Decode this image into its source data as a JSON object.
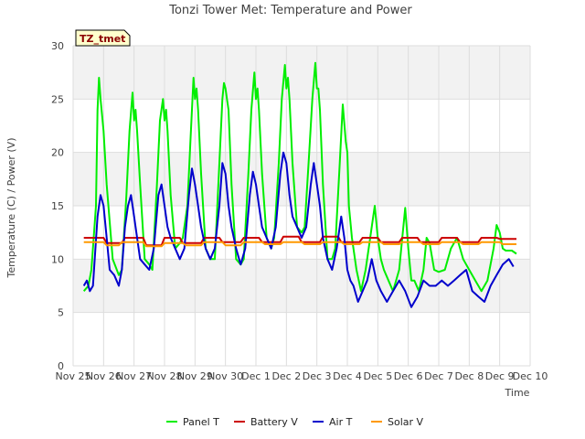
{
  "chart_data": {
    "type": "line",
    "title": "Tonzi Tower Met: Temperature and Power",
    "xlabel": "Time",
    "ylabel": "Temperature (C) / Power (V)",
    "ylim": [
      0,
      30
    ],
    "yticks": [
      0,
      5,
      10,
      15,
      20,
      25,
      30
    ],
    "xlim": [
      0,
      15
    ],
    "xticks": [
      "Nov 25",
      "Nov 26",
      "Nov 27",
      "Nov 28",
      "Nov 29",
      "Nov 30",
      "Dec 1",
      "Dec 2",
      "Dec 3",
      "Dec 4",
      "Dec 5",
      "Dec 6",
      "Dec 7",
      "Dec 8",
      "Dec 9",
      "Dec 10"
    ],
    "site_tag": "TZ_tmet",
    "grid": true,
    "legend_position": "bottom",
    "series": [
      {
        "name": "Panel T",
        "color": "#00ee00",
        "x": [
          0.35,
          0.5,
          0.6,
          0.75,
          0.8,
          0.85,
          0.9,
          1.0,
          1.1,
          1.3,
          1.5,
          1.6,
          1.75,
          1.85,
          1.95,
          2.0,
          2.05,
          2.1,
          2.2,
          2.35,
          2.5,
          2.6,
          2.75,
          2.85,
          2.95,
          3.0,
          3.05,
          3.1,
          3.2,
          3.35,
          3.5,
          3.6,
          3.75,
          3.85,
          3.95,
          4.0,
          4.05,
          4.1,
          4.2,
          4.35,
          4.5,
          4.65,
          4.8,
          4.9,
          4.95,
          5.0,
          5.05,
          5.1,
          5.2,
          5.35,
          5.5,
          5.6,
          5.75,
          5.85,
          5.95,
          6.0,
          6.05,
          6.1,
          6.2,
          6.35,
          6.5,
          6.6,
          6.75,
          6.85,
          6.95,
          7.0,
          7.05,
          7.1,
          7.2,
          7.35,
          7.5,
          7.6,
          7.75,
          7.85,
          7.95,
          8.0,
          8.05,
          8.1,
          8.2,
          8.35,
          8.5,
          8.6,
          8.75,
          8.85,
          8.95,
          9.0,
          9.05,
          9.15,
          9.3,
          9.45,
          9.6,
          9.75,
          9.9,
          10.0,
          10.1,
          10.2,
          10.35,
          10.5,
          10.7,
          10.9,
          11.0,
          11.1,
          11.2,
          11.35,
          11.5,
          11.6,
          11.7,
          11.85,
          12.0,
          12.2,
          12.4,
          12.6,
          12.8,
          13.0,
          13.2,
          13.4,
          13.6,
          13.8,
          13.9,
          14.0,
          14.1,
          14.2,
          14.4,
          14.55
        ],
        "values": [
          7.0,
          7.5,
          9.0,
          15.0,
          24.0,
          27.0,
          25.0,
          22.0,
          17.0,
          10.0,
          8.5,
          9.0,
          16.0,
          22.0,
          25.6,
          23.0,
          24.0,
          22.0,
          17.0,
          10.0,
          9.5,
          9.0,
          17.0,
          23.0,
          25.0,
          23.0,
          24.0,
          22.0,
          16.0,
          11.0,
          11.5,
          12.0,
          15.0,
          21.0,
          27.0,
          25.0,
          26.0,
          24.0,
          18.0,
          11.0,
          10.0,
          10.0,
          19.0,
          25.0,
          26.5,
          26.0,
          25.0,
          24.0,
          17.0,
          10.0,
          9.5,
          10.0,
          18.0,
          24.0,
          27.5,
          25.0,
          26.0,
          24.0,
          18.0,
          12.0,
          11.0,
          12.0,
          19.0,
          25.0,
          28.2,
          26.0,
          27.0,
          25.0,
          19.0,
          13.0,
          12.5,
          13.0,
          20.0,
          25.0,
          28.4,
          26.0,
          26.0,
          24.0,
          17.0,
          10.0,
          10.0,
          11.0,
          19.0,
          24.5,
          21.0,
          20.0,
          15.0,
          12.0,
          9.0,
          7.0,
          9.0,
          12.0,
          15.0,
          12.0,
          10.0,
          9.0,
          8.0,
          7.0,
          9.0,
          14.8,
          11.0,
          8.0,
          8.0,
          7.0,
          9.0,
          12.0,
          11.5,
          9.0,
          8.8,
          9.0,
          11.0,
          12.0,
          10.0,
          9.0,
          8.0,
          7.0,
          8.0,
          11.0,
          13.2,
          12.5,
          11.0,
          10.8,
          10.8,
          10.5
        ]
      },
      {
        "name": "Battery V",
        "color": "#cc0000",
        "x": [
          0.35,
          1.0,
          1.1,
          1.6,
          1.7,
          2.3,
          2.4,
          2.9,
          3.0,
          3.5,
          3.6,
          4.2,
          4.3,
          4.8,
          4.9,
          5.5,
          5.6,
          6.1,
          6.2,
          6.8,
          6.9,
          7.4,
          7.5,
          8.1,
          8.2,
          8.7,
          8.8,
          9.4,
          9.5,
          10.0,
          10.1,
          10.7,
          10.8,
          11.3,
          11.4,
          12.0,
          12.1,
          12.6,
          12.7,
          13.3,
          13.4,
          13.9,
          14.0,
          14.55
        ],
        "values": [
          12.0,
          12.0,
          11.5,
          11.5,
          12.0,
          12.0,
          11.3,
          11.3,
          12.0,
          12.0,
          11.5,
          11.5,
          12.0,
          12.0,
          11.6,
          11.6,
          12.0,
          12.0,
          11.6,
          11.6,
          12.1,
          12.1,
          11.6,
          11.6,
          12.1,
          12.1,
          11.6,
          11.6,
          12.0,
          12.0,
          11.6,
          11.6,
          12.0,
          12.0,
          11.6,
          11.6,
          12.0,
          12.0,
          11.6,
          11.6,
          12.0,
          12.0,
          11.9,
          11.9
        ]
      },
      {
        "name": "Air T",
        "color": "#0000cc",
        "x": [
          0.35,
          0.45,
          0.55,
          0.65,
          0.8,
          0.9,
          1.0,
          1.1,
          1.2,
          1.35,
          1.5,
          1.6,
          1.7,
          1.8,
          1.9,
          2.0,
          2.1,
          2.2,
          2.35,
          2.5,
          2.65,
          2.8,
          2.9,
          3.0,
          3.1,
          3.2,
          3.35,
          3.5,
          3.65,
          3.8,
          3.9,
          4.0,
          4.1,
          4.2,
          4.35,
          4.5,
          4.65,
          4.8,
          4.9,
          5.0,
          5.1,
          5.2,
          5.35,
          5.5,
          5.65,
          5.8,
          5.9,
          6.0,
          6.1,
          6.2,
          6.35,
          6.5,
          6.65,
          6.8,
          6.9,
          7.0,
          7.1,
          7.2,
          7.35,
          7.5,
          7.65,
          7.8,
          7.9,
          8.0,
          8.1,
          8.2,
          8.35,
          8.5,
          8.65,
          8.8,
          8.9,
          9.0,
          9.1,
          9.2,
          9.35,
          9.5,
          9.65,
          9.8,
          9.95,
          10.1,
          10.3,
          10.5,
          10.7,
          10.9,
          11.1,
          11.3,
          11.5,
          11.7,
          11.9,
          12.1,
          12.3,
          12.5,
          12.7,
          12.9,
          13.1,
          13.3,
          13.5,
          13.7,
          13.9,
          14.1,
          14.3,
          14.45
        ],
        "values": [
          7.5,
          8.0,
          7.0,
          7.5,
          14.0,
          16.0,
          15.0,
          12.0,
          9.0,
          8.5,
          7.5,
          9.0,
          13.0,
          15.0,
          16.0,
          14.0,
          12.0,
          10.0,
          9.5,
          9.0,
          11.0,
          16.0,
          17.0,
          15.0,
          13.0,
          12.0,
          11.0,
          10.0,
          11.0,
          16.0,
          18.5,
          17.0,
          15.0,
          13.0,
          11.0,
          10.0,
          11.0,
          15.0,
          19.0,
          18.0,
          15.0,
          13.0,
          11.0,
          9.5,
          11.0,
          16.0,
          18.2,
          17.0,
          15.0,
          13.0,
          12.0,
          11.0,
          13.0,
          18.0,
          20.0,
          19.0,
          16.0,
          14.0,
          13.0,
          12.0,
          13.0,
          17.0,
          19.0,
          17.0,
          15.0,
          12.0,
          10.0,
          9.0,
          11.0,
          14.0,
          12.0,
          9.0,
          8.0,
          7.5,
          6.0,
          7.0,
          8.0,
          10.0,
          8.0,
          7.0,
          6.0,
          7.0,
          8.0,
          7.0,
          5.5,
          6.5,
          8.0,
          7.5,
          7.5,
          8.0,
          7.5,
          8.0,
          8.5,
          9.0,
          7.0,
          6.5,
          6.0,
          7.5,
          8.5,
          9.5,
          10.0,
          9.3
        ]
      },
      {
        "name": "Solar V",
        "color": "#ff9900",
        "x": [
          0.35,
          1.0,
          1.1,
          1.5,
          1.6,
          2.3,
          2.4,
          2.9,
          3.0,
          3.6,
          3.7,
          4.2,
          4.3,
          4.9,
          5.0,
          5.5,
          5.6,
          6.2,
          6.3,
          6.8,
          6.9,
          7.5,
          7.6,
          8.1,
          8.2,
          8.8,
          8.9,
          9.4,
          9.5,
          10.1,
          10.2,
          10.7,
          10.8,
          11.4,
          11.5,
          12.0,
          12.1,
          12.7,
          12.8,
          13.3,
          13.4,
          14.0,
          14.1,
          14.55
        ],
        "values": [
          11.6,
          11.6,
          11.3,
          11.3,
          11.6,
          11.6,
          11.2,
          11.2,
          11.5,
          11.5,
          11.3,
          11.3,
          11.6,
          11.6,
          11.3,
          11.3,
          11.6,
          11.6,
          11.4,
          11.4,
          11.6,
          11.6,
          11.4,
          11.4,
          11.6,
          11.6,
          11.4,
          11.4,
          11.6,
          11.6,
          11.4,
          11.4,
          11.6,
          11.6,
          11.4,
          11.4,
          11.6,
          11.6,
          11.4,
          11.4,
          11.6,
          11.6,
          11.4,
          11.4
        ]
      }
    ]
  }
}
